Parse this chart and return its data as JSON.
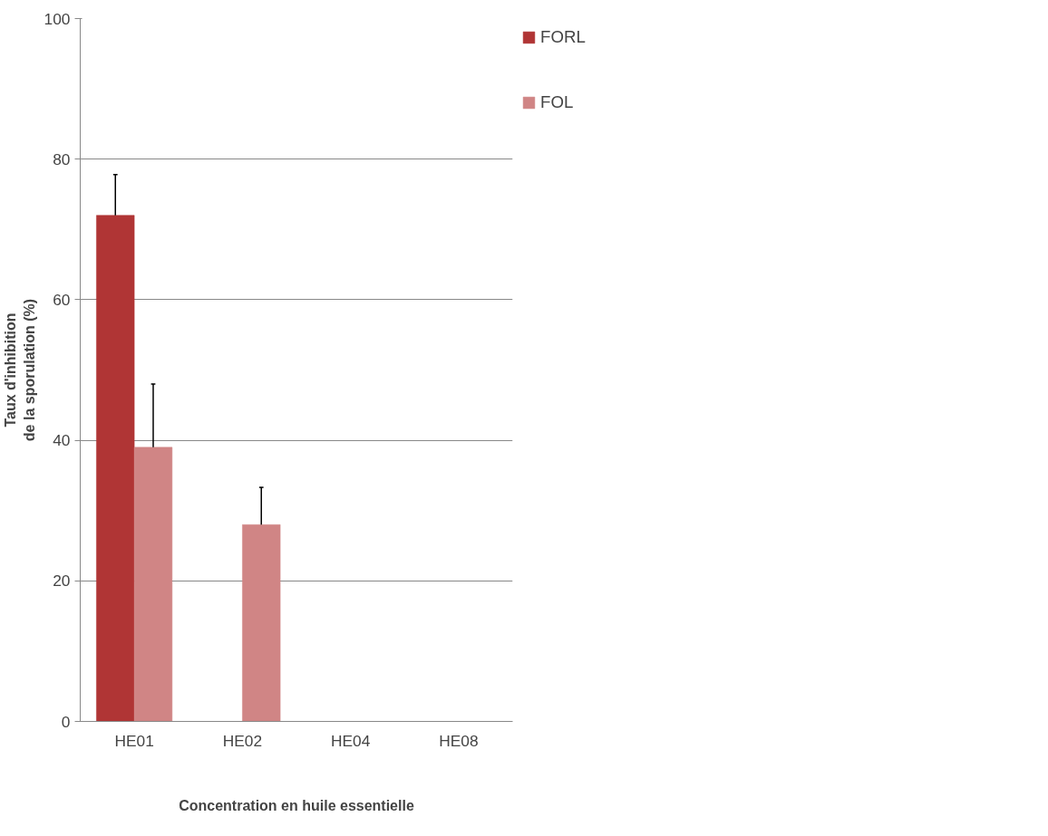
{
  "chart_data": {
    "type": "bar",
    "xlabel": "Concentration en huile essentielle",
    "ylabel": "Taux d'inhibition\nde la sporulation (%)",
    "categories": [
      "HE01",
      "HE02",
      "HE04",
      "HE08"
    ],
    "series": [
      {
        "name": "FORL",
        "color": "#b03535",
        "values": [
          72,
          0,
          0,
          0
        ],
        "errors": [
          5.8,
          null,
          null,
          null
        ]
      },
      {
        "name": "FOL",
        "color": "#d08585",
        "values": [
          39,
          28,
          0,
          0
        ],
        "errors": [
          9,
          5.3,
          null,
          null
        ]
      }
    ],
    "ylim": [
      0,
      100
    ],
    "yticks": [
      0,
      20,
      40,
      60,
      80,
      100
    ],
    "grid": "y",
    "legend": "top right"
  }
}
